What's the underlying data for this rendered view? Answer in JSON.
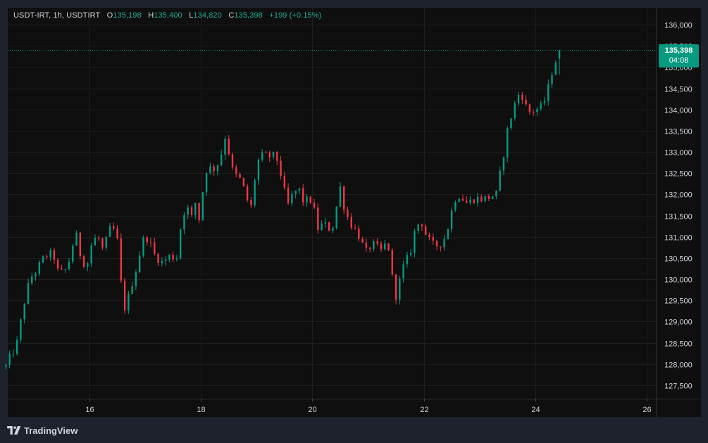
{
  "header": {
    "symbol": "USDT-IRT, 1h, USDTIRT",
    "o_label": "O",
    "o_value": "135,198",
    "h_label": "H",
    "h_value": "135,400",
    "l_label": "L",
    "l_value": "134,820",
    "c_label": "C",
    "c_value": "135,398",
    "change": "+199 (+0.15%)"
  },
  "price_tag": {
    "price": "135,398",
    "countdown": "04:08"
  },
  "brand": {
    "name": "TradingView",
    "logo_icon": "tradingview-logo-icon"
  },
  "colors": {
    "background": "#0f0f0f",
    "frame": "#1e222d",
    "grid": "#1d1d1d",
    "up": "#089981",
    "down": "#f23645",
    "text": "#d1d4dc",
    "accent": "#22ab94"
  },
  "chart_data": {
    "type": "candlestick",
    "title": "USDT-IRT, 1h, USDTIRT",
    "xlabel": "",
    "ylabel": "",
    "y_ticks": [
      127500,
      128000,
      128500,
      129000,
      129500,
      130000,
      130500,
      131000,
      131500,
      132000,
      132500,
      133000,
      133500,
      134000,
      134500,
      135000,
      135500,
      136000
    ],
    "y_tick_labels": [
      "127,500",
      "128,000",
      "128,500",
      "129,000",
      "129,500",
      "130,000",
      "130,500",
      "131,000",
      "131,500",
      "132,000",
      "132,500",
      "133,000",
      "133,500",
      "134,000",
      "134,500",
      "135,000",
      "135,500",
      "136,000"
    ],
    "x_ticks": [
      16,
      18,
      20,
      22,
      24,
      26
    ],
    "x_tick_labels": [
      "16",
      "18",
      "20",
      "22",
      "24",
      "26"
    ],
    "x_range_days": [
      14.5,
      26.2
    ],
    "ylim": [
      127200,
      136400
    ],
    "grid": true,
    "current_price": 135398,
    "path_close": [
      [
        14.5,
        127950
      ],
      [
        14.7,
        128500
      ],
      [
        14.85,
        129600
      ],
      [
        14.95,
        130050
      ],
      [
        15.05,
        130200
      ],
      [
        15.2,
        130550
      ],
      [
        15.35,
        130600
      ],
      [
        15.45,
        130100
      ],
      [
        15.6,
        130250
      ],
      [
        15.75,
        131100
      ],
      [
        15.85,
        130500
      ],
      [
        15.95,
        130300
      ],
      [
        16.05,
        130900
      ],
      [
        16.15,
        131000
      ],
      [
        16.25,
        130650
      ],
      [
        16.3,
        130900
      ],
      [
        16.4,
        131300
      ],
      [
        16.5,
        130900
      ],
      [
        16.6,
        129400
      ],
      [
        16.65,
        129300
      ],
      [
        16.75,
        129850
      ],
      [
        16.85,
        130300
      ],
      [
        16.95,
        130900
      ],
      [
        17.05,
        131000
      ],
      [
        17.15,
        130600
      ],
      [
        17.3,
        130400
      ],
      [
        17.45,
        130550
      ],
      [
        17.55,
        130500
      ],
      [
        17.6,
        130600
      ],
      [
        17.65,
        131500
      ],
      [
        17.75,
        131700
      ],
      [
        17.85,
        131400
      ],
      [
        17.9,
        131800
      ],
      [
        17.98,
        131350
      ],
      [
        18.05,
        132300
      ],
      [
        18.12,
        132700
      ],
      [
        18.2,
        132550
      ],
      [
        18.28,
        132700
      ],
      [
        18.35,
        132800
      ],
      [
        18.4,
        133300
      ],
      [
        18.45,
        133400
      ],
      [
        18.5,
        133000
      ],
      [
        18.55,
        132700
      ],
      [
        18.6,
        132300
      ],
      [
        18.65,
        132500
      ],
      [
        18.75,
        132200
      ],
      [
        18.85,
        131800
      ],
      [
        18.9,
        131700
      ],
      [
        18.97,
        132400
      ],
      [
        19.05,
        132900
      ],
      [
        19.2,
        132900
      ],
      [
        19.35,
        132900
      ],
      [
        19.45,
        132400
      ],
      [
        19.55,
        131700
      ],
      [
        19.65,
        132000
      ],
      [
        19.75,
        132150
      ],
      [
        19.85,
        131800
      ],
      [
        19.95,
        131900
      ],
      [
        20.0,
        131800
      ],
      [
        20.1,
        131200
      ],
      [
        20.2,
        131300
      ],
      [
        20.3,
        131200
      ],
      [
        20.4,
        131300
      ],
      [
        20.48,
        132300
      ],
      [
        20.55,
        131800
      ],
      [
        20.65,
        131400
      ],
      [
        20.75,
        131200
      ],
      [
        20.85,
        131000
      ],
      [
        20.95,
        130600
      ],
      [
        21.05,
        130800
      ],
      [
        21.15,
        130800
      ],
      [
        21.2,
        130600
      ],
      [
        21.3,
        130800
      ],
      [
        21.4,
        130700
      ],
      [
        21.45,
        129700
      ],
      [
        21.52,
        129600
      ],
      [
        21.6,
        130200
      ],
      [
        21.75,
        130600
      ],
      [
        21.85,
        131200
      ],
      [
        21.95,
        131400
      ],
      [
        22.05,
        131000
      ],
      [
        22.15,
        130800
      ],
      [
        22.25,
        130800
      ],
      [
        22.35,
        130900
      ],
      [
        22.45,
        131300
      ],
      [
        22.55,
        131900
      ],
      [
        22.65,
        132000
      ],
      [
        22.75,
        131800
      ],
      [
        22.8,
        131800
      ],
      [
        22.9,
        131900
      ],
      [
        23.0,
        131900
      ],
      [
        23.1,
        131900
      ],
      [
        23.2,
        131950
      ],
      [
        23.3,
        132000
      ],
      [
        23.4,
        132700
      ],
      [
        23.5,
        133500
      ],
      [
        23.6,
        134000
      ],
      [
        23.7,
        134350
      ],
      [
        23.75,
        134400
      ],
      [
        23.8,
        134200
      ],
      [
        23.85,
        134000
      ],
      [
        23.9,
        133950
      ],
      [
        24.0,
        134000
      ],
      [
        24.1,
        134050
      ],
      [
        24.2,
        134300
      ],
      [
        24.3,
        134900
      ],
      [
        24.38,
        135200
      ],
      [
        24.45,
        135398
      ]
    ],
    "path_close_units": "x in days of month, y in IRT"
  }
}
